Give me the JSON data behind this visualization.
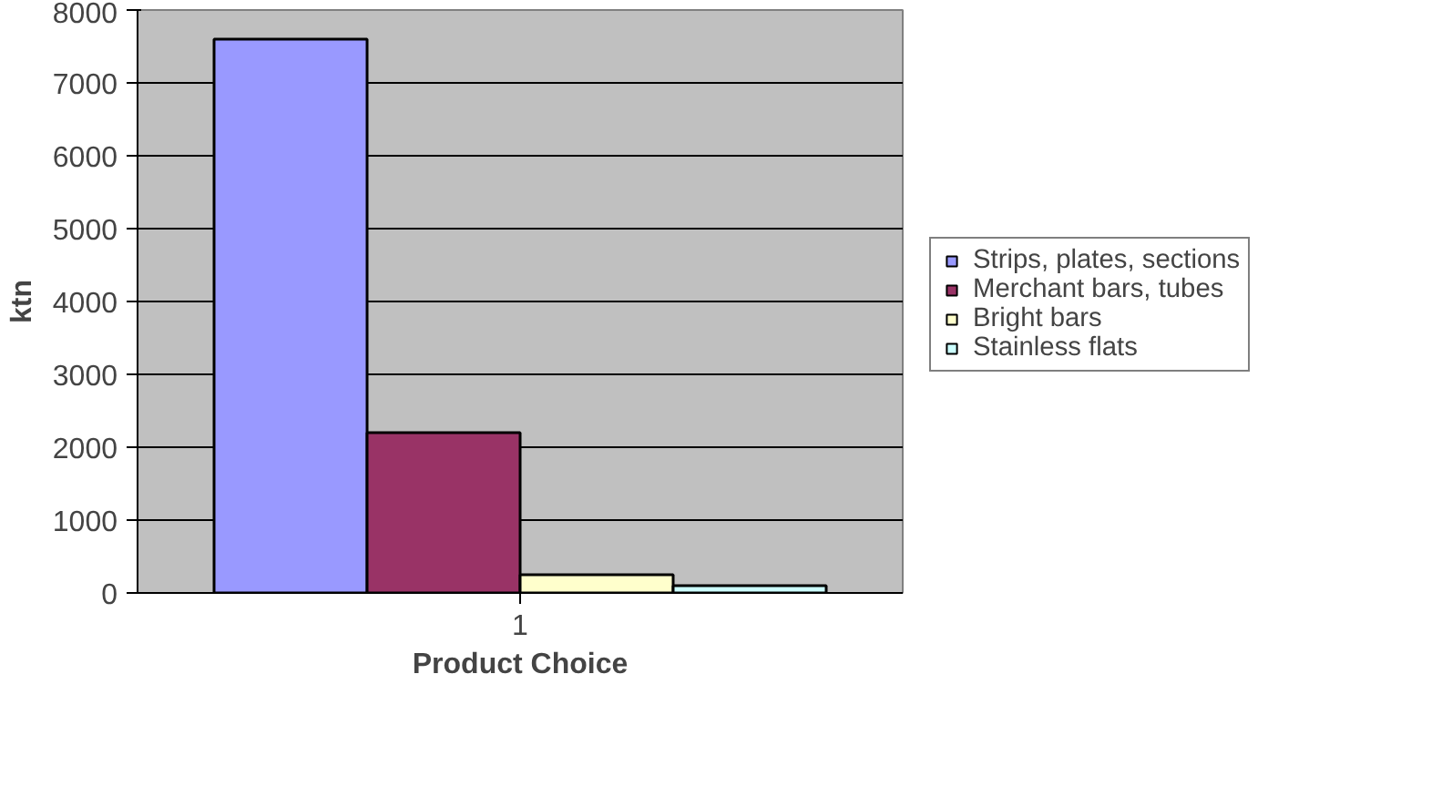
{
  "chart_data": {
    "type": "bar",
    "categories": [
      "1"
    ],
    "xlabel": "Product Choice",
    "ylabel": "ktn",
    "ylim": [
      0,
      8000
    ],
    "yticks": [
      0,
      1000,
      2000,
      3000,
      4000,
      5000,
      6000,
      7000,
      8000
    ],
    "grid": "y",
    "legend": "right",
    "series": [
      {
        "name": "Strips, plates, sections",
        "color": "#9999ff",
        "values": [
          7600
        ]
      },
      {
        "name": "Merchant bars, tubes",
        "color": "#993366",
        "values": [
          2200
        ]
      },
      {
        "name": "Bright bars",
        "color": "#ffffcc",
        "values": [
          250
        ]
      },
      {
        "name": "Stainless flats",
        "color": "#ccffff",
        "values": [
          100
        ]
      }
    ]
  }
}
